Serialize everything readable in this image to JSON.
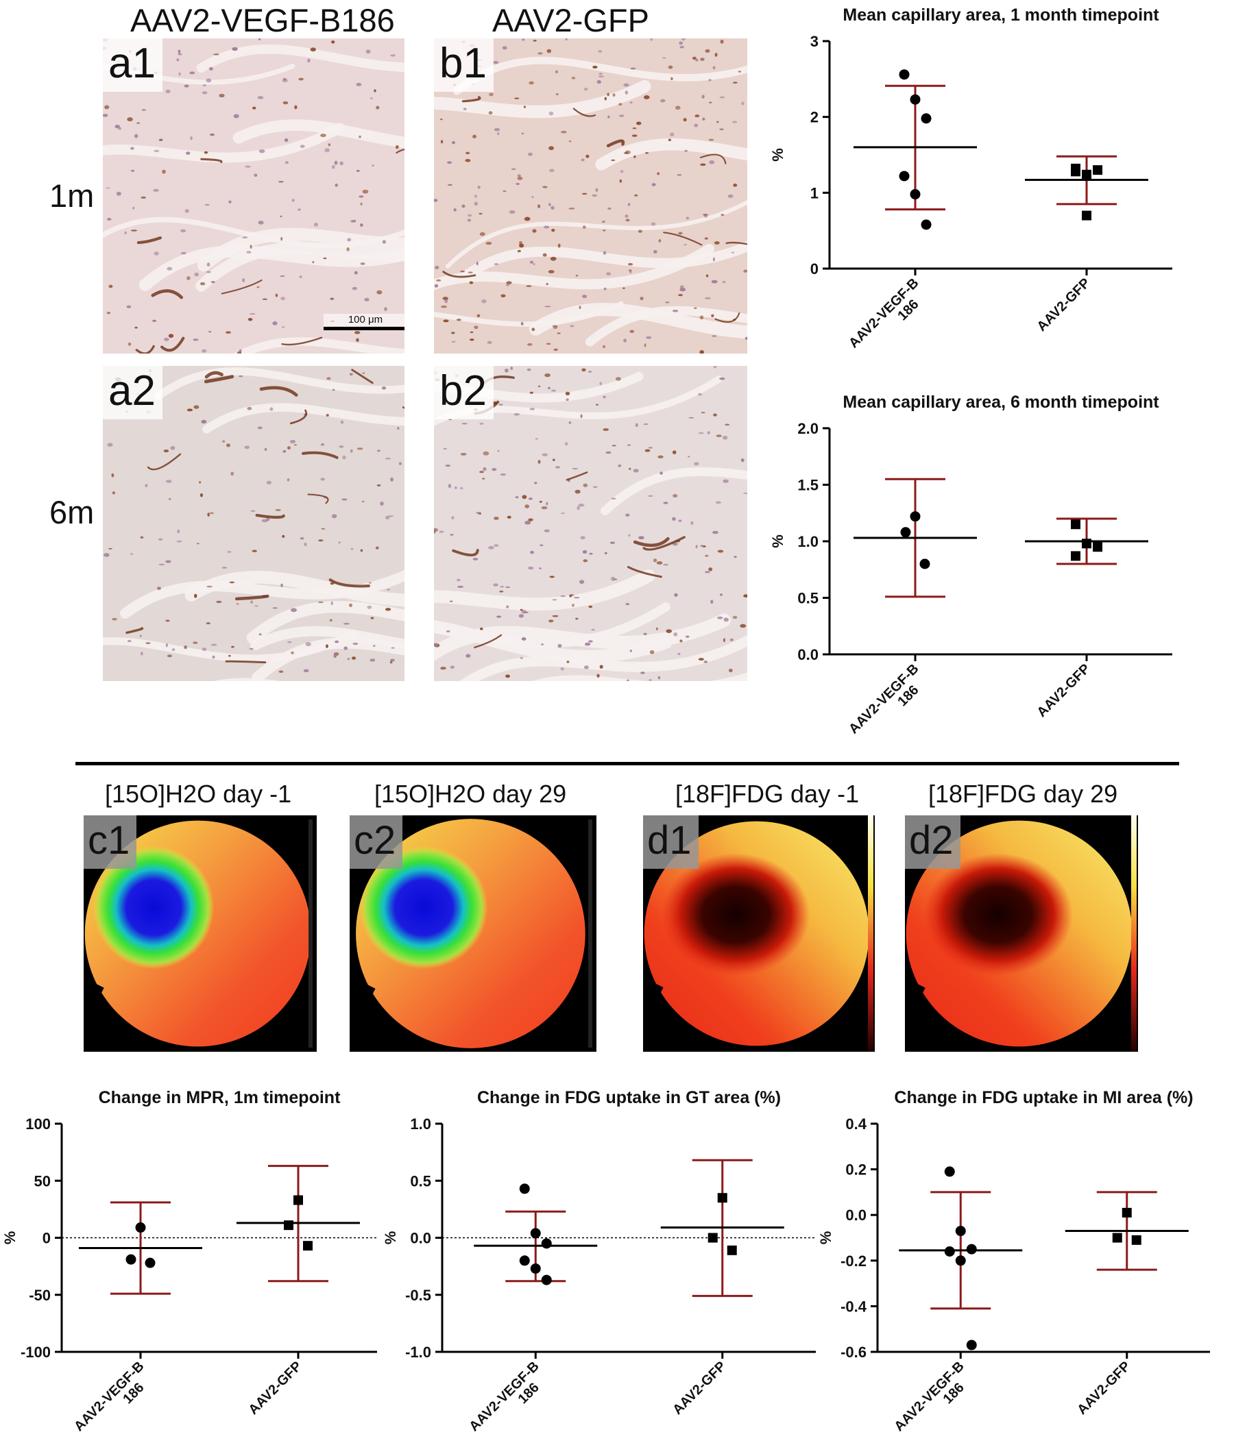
{
  "histology": {
    "columns": [
      "AAV2-VEGF-B186",
      "AAV2-GFP"
    ],
    "rows": [
      "1m",
      "6m"
    ],
    "panels": [
      {
        "id": "a1",
        "label": "a1",
        "tone": "light"
      },
      {
        "id": "b1",
        "label": "b1",
        "tone": "dense"
      },
      {
        "id": "a2",
        "label": "a2",
        "tone": "grey"
      },
      {
        "id": "b2",
        "label": "b2",
        "tone": "fine"
      }
    ],
    "scale_bar": "100 μm"
  },
  "pet": {
    "panels": [
      {
        "id": "c1",
        "label": "c1",
        "title": "[15O]H2O day -1",
        "type": "perfusion"
      },
      {
        "id": "c2",
        "label": "c2",
        "title": "[15O]H2O day 29",
        "type": "perfusion"
      },
      {
        "id": "d1",
        "label": "d1",
        "title": "[18F]FDG day -1",
        "type": "fdg"
      },
      {
        "id": "d2",
        "label": "d2",
        "title": "[18F]FDG day 29",
        "type": "fdg"
      }
    ]
  },
  "colors": {
    "errorbar": "#8b1a1a",
    "mean": "#000000",
    "points": "#000000"
  },
  "chart_data": [
    {
      "id": "chart1",
      "type": "scatter",
      "title": "Mean capillary area, 1 month timepoint",
      "ylabel": "%",
      "ylim": [
        0,
        3
      ],
      "yticks": [
        "0",
        "1",
        "2",
        "3"
      ],
      "ytick_values": [
        0,
        1,
        2,
        3
      ],
      "categories": [
        "AAV2-VEGF-B\n186",
        "AAV2-GFP"
      ],
      "groups": [
        {
          "marker": "circle",
          "mean": 1.6,
          "sd_low": 0.78,
          "sd_high": 2.41,
          "points": [
            2.56,
            2.23,
            1.98,
            1.22,
            0.98,
            0.58
          ]
        },
        {
          "marker": "square",
          "mean": 1.17,
          "sd_low": 0.85,
          "sd_high": 1.48,
          "points": [
            1.32,
            1.24,
            1.3,
            1.28,
            0.7
          ]
        }
      ]
    },
    {
      "id": "chart2",
      "type": "scatter",
      "title": "Mean capillary area, 6 month timepoint",
      "ylabel": "%",
      "ylim": [
        0,
        2
      ],
      "yticks": [
        "0.0",
        "0.5",
        "1.0",
        "1.5",
        "2.0"
      ],
      "ytick_values": [
        0,
        0.5,
        1,
        1.5,
        2
      ],
      "categories": [
        "AAV2-VEGF-B\n186",
        "AAV2-GFP"
      ],
      "groups": [
        {
          "marker": "circle",
          "mean": 1.03,
          "sd_low": 0.51,
          "sd_high": 1.55,
          "points": [
            1.22,
            1.08,
            0.8
          ]
        },
        {
          "marker": "square",
          "mean": 1.0,
          "sd_low": 0.8,
          "sd_high": 1.2,
          "points": [
            1.15,
            0.98,
            0.95,
            0.87
          ]
        }
      ]
    },
    {
      "id": "chart3",
      "type": "scatter",
      "title": "Change in MPR, 1m timepoint",
      "ylabel": "%",
      "ylim": [
        -100,
        100
      ],
      "yticks": [
        "-100",
        "-50",
        "0",
        "50",
        "100"
      ],
      "ytick_values": [
        -100,
        -50,
        0,
        50,
        100
      ],
      "zero_line": true,
      "categories": [
        "AAV2-VEGF-B\n186",
        "AAV2-GFP"
      ],
      "groups": [
        {
          "marker": "circle",
          "mean": -9,
          "sd_low": -49,
          "sd_high": 31,
          "points": [
            9,
            -19,
            -22
          ]
        },
        {
          "marker": "square",
          "mean": 13,
          "sd_low": -38,
          "sd_high": 63,
          "points": [
            33,
            11,
            -7
          ]
        }
      ]
    },
    {
      "id": "chart4",
      "type": "scatter",
      "title": "Change in FDG uptake in GT area  (%)",
      "ylabel": "%",
      "ylim": [
        -1,
        1
      ],
      "yticks": [
        "-1.0",
        "-0.5",
        "0.0",
        "0.5",
        "1.0"
      ],
      "ytick_values": [
        -1,
        -0.5,
        0,
        0.5,
        1
      ],
      "zero_line": true,
      "categories": [
        "AAV2-VEGF-B\n186",
        "AAV2-GFP"
      ],
      "groups": [
        {
          "marker": "circle",
          "mean": -0.07,
          "sd_low": -0.38,
          "sd_high": 0.23,
          "points": [
            0.43,
            0.04,
            -0.05,
            -0.2,
            -0.27,
            -0.37
          ]
        },
        {
          "marker": "square",
          "mean": 0.09,
          "sd_low": -0.51,
          "sd_high": 0.68,
          "points": [
            0.35,
            0.0,
            -0.11
          ]
        }
      ]
    },
    {
      "id": "chart5",
      "type": "scatter",
      "title": "Change in FDG uptake in MI area (%)",
      "ylabel": "%",
      "ylim": [
        -0.6,
        0.4
      ],
      "yticks": [
        "-0.6",
        "-0.4",
        "-0.2",
        "0.0",
        "0.2",
        "0.4"
      ],
      "ytick_values": [
        -0.6,
        -0.4,
        -0.2,
        0,
        0.2,
        0.4
      ],
      "categories": [
        "AAV2-VEGF-B\n186",
        "AAV2-GFP"
      ],
      "groups": [
        {
          "marker": "circle",
          "mean": -0.155,
          "sd_low": -0.41,
          "sd_high": 0.1,
          "points": [
            0.19,
            -0.07,
            -0.15,
            -0.16,
            -0.2,
            -0.57
          ]
        },
        {
          "marker": "square",
          "mean": -0.07,
          "sd_low": -0.24,
          "sd_high": 0.1,
          "points": [
            0.01,
            -0.1,
            -0.11
          ]
        }
      ]
    }
  ]
}
